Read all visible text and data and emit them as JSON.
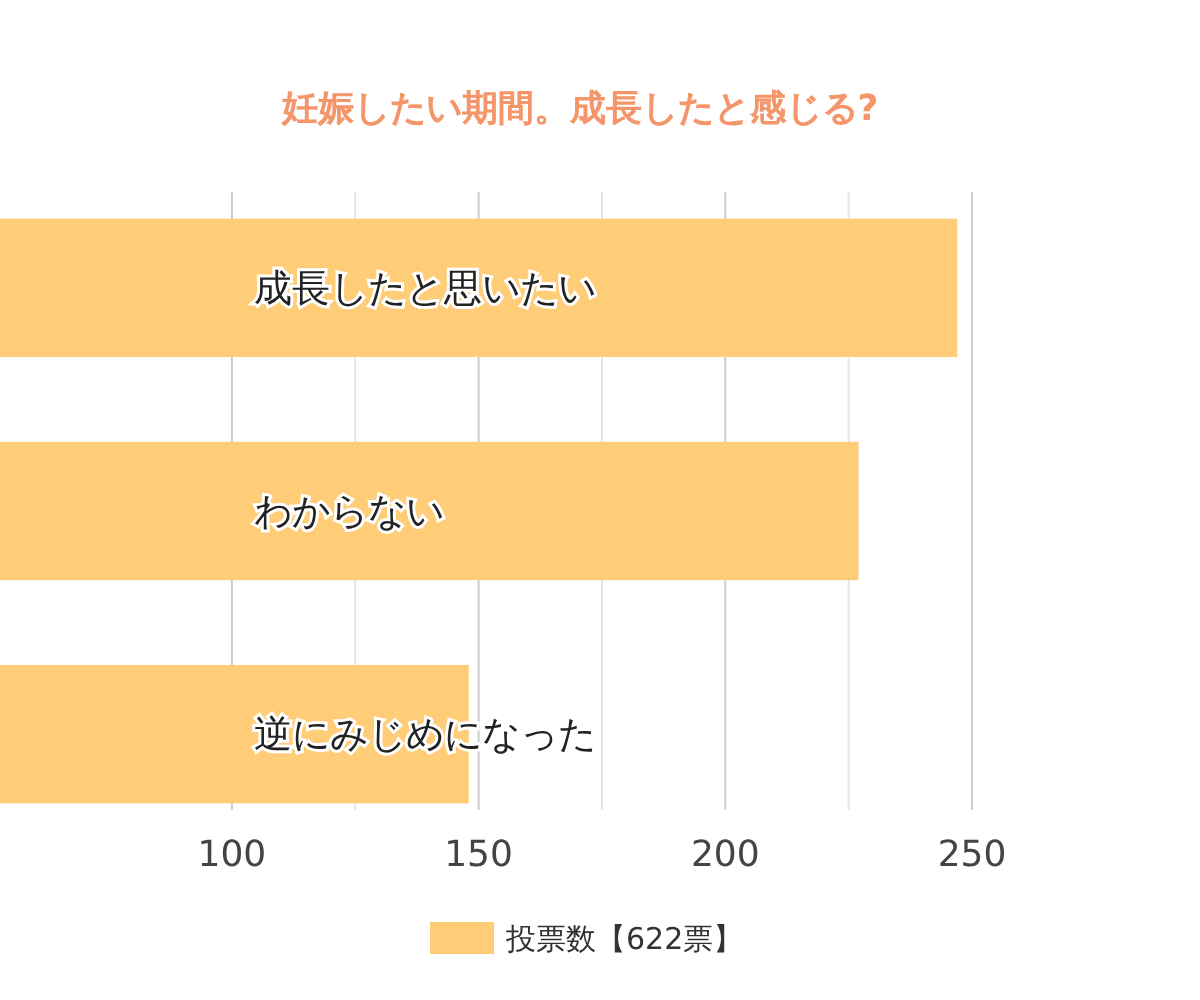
{
  "chart_data": {
    "type": "bar",
    "orientation": "horizontal",
    "title": "妊娠したい期間。成長したと感じる?",
    "categories": [
      "成長したと思いたい",
      "わからない",
      "逆にみじめになった"
    ],
    "series": [
      {
        "name": "投票数【622票】",
        "color": "#ffcc77",
        "values": [
          247,
          227,
          148
        ]
      }
    ],
    "xlim": [
      53,
      250
    ],
    "xticks": [
      100,
      {
        "value": 125,
        "label": null
      },
      150,
      {
        "value": 175,
        "label": null
      },
      200,
      {
        "value": 225,
        "label": null
      },
      250
    ],
    "grid": "x",
    "legend": "bottom"
  }
}
